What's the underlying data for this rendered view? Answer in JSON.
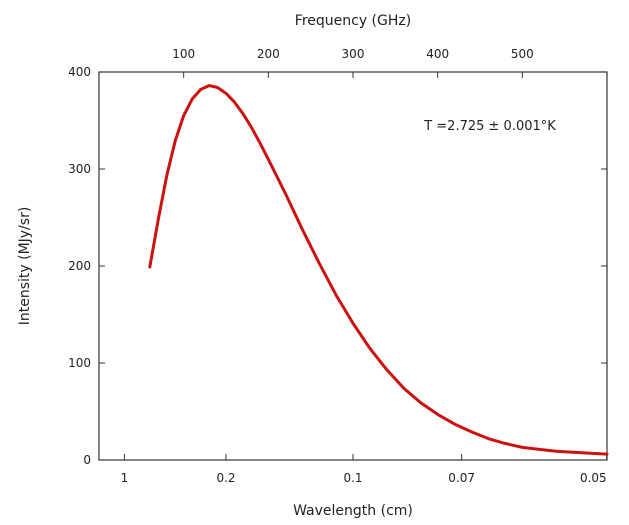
{
  "chart_data": {
    "type": "line",
    "title": "",
    "xlabel": "Wavelength (cm)",
    "x2label": "Frequency (GHz)",
    "ylabel": "Intensity (MJy/sr)",
    "ylim": [
      0,
      400
    ],
    "xlim_frequency_ghz": [
      0,
      600
    ],
    "grid": false,
    "x_ticks": [
      {
        "label": "1",
        "frequency_ghz": 30
      },
      {
        "label": "0.2",
        "frequency_ghz": 150
      },
      {
        "label": "0.1",
        "frequency_ghz": 300
      },
      {
        "label": "0.07",
        "frequency_ghz": 428.3
      },
      {
        "label": "0.05",
        "frequency_ghz": 599.6
      }
    ],
    "x2_ticks": [
      {
        "label": "100",
        "value": 100
      },
      {
        "label": "200",
        "value": 200
      },
      {
        "label": "300",
        "value": 300
      },
      {
        "label": "400",
        "value": 400
      },
      {
        "label": "500",
        "value": 500
      }
    ],
    "y_ticks": [
      {
        "label": "0",
        "value": 0
      },
      {
        "label": "100",
        "value": 100
      },
      {
        "label": "200",
        "value": 200
      },
      {
        "label": "300",
        "value": 300
      },
      {
        "label": "400",
        "value": 400
      }
    ],
    "annotation": "T =2.725 ± 0.001°K",
    "series": [
      {
        "color": "#cc1111",
        "x": [
          60,
          70,
          80,
          90,
          100,
          110,
          120,
          130,
          140,
          150,
          160,
          170,
          180,
          190,
          200,
          220,
          240,
          260,
          280,
          300,
          320,
          340,
          360,
          380,
          400,
          420,
          440,
          460,
          480,
          500,
          520,
          540,
          560,
          580,
          600
        ],
        "y": [
          199,
          248,
          293,
          329,
          355,
          372,
          382,
          386,
          384,
          378,
          369,
          357,
          343,
          327,
          310,
          275,
          238,
          203,
          170,
          141,
          115,
          93,
          74,
          59,
          47,
          37,
          29,
          22,
          17,
          13,
          11,
          9,
          8,
          7,
          6
        ]
      }
    ]
  }
}
